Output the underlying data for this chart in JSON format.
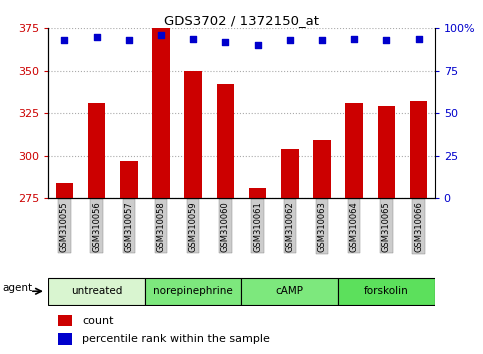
{
  "title": "GDS3702 / 1372150_at",
  "samples": [
    "GSM310055",
    "GSM310056",
    "GSM310057",
    "GSM310058",
    "GSM310059",
    "GSM310060",
    "GSM310061",
    "GSM310062",
    "GSM310063",
    "GSM310064",
    "GSM310065",
    "GSM310066"
  ],
  "counts": [
    284,
    331,
    297,
    376,
    350,
    342,
    281,
    304,
    309,
    331,
    329,
    332
  ],
  "percentiles": [
    93,
    95,
    93,
    96,
    94,
    92,
    90,
    93,
    93,
    94,
    93,
    94
  ],
  "groups": [
    {
      "label": "untreated",
      "start": 0,
      "end": 3,
      "color": "#d9f5d0"
    },
    {
      "label": "norepinephrine",
      "start": 3,
      "end": 6,
      "color": "#7de87d"
    },
    {
      "label": "cAMP",
      "start": 6,
      "end": 9,
      "color": "#7de87d"
    },
    {
      "label": "forskolin",
      "start": 9,
      "end": 12,
      "color": "#5ce05c"
    }
  ],
  "ylim_left": [
    275,
    375
  ],
  "yticks_left": [
    275,
    300,
    325,
    350,
    375
  ],
  "ylim_right": [
    0,
    100
  ],
  "yticks_right": [
    0,
    25,
    50,
    75,
    100
  ],
  "bar_color": "#cc0000",
  "dot_color": "#0000cc",
  "bar_bottom": 275,
  "tick_label_color_left": "#cc0000",
  "tick_label_color_right": "#0000cc",
  "grid_color": "#aaaaaa",
  "sample_bg_color": "#cccccc",
  "legend_count_color": "#cc0000",
  "legend_pct_color": "#0000cc",
  "fig_width": 4.83,
  "fig_height": 3.54,
  "fig_dpi": 100
}
